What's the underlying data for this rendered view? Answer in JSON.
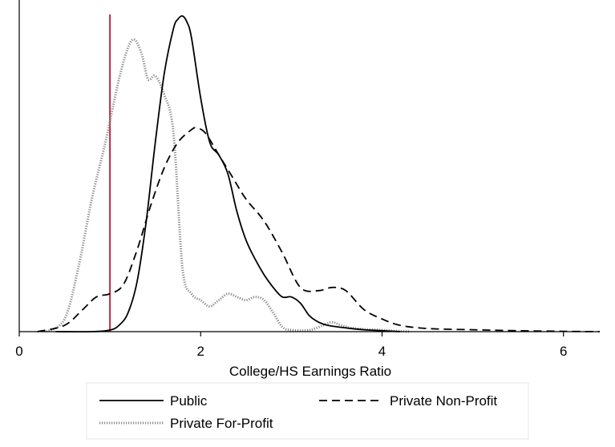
{
  "chart_data": {
    "type": "line",
    "title": "",
    "xlabel": "College/HS Earnings Ratio",
    "ylabel": "",
    "xlim": [
      0,
      6.4
    ],
    "ylim": [
      0,
      1.0
    ],
    "xticks": [
      0,
      2,
      4,
      6
    ],
    "xtick_labels": [
      "0",
      "2",
      "4",
      "6"
    ],
    "grid": false,
    "legend_position": "bottom",
    "reference_line": {
      "x": 1,
      "color": "#c0283e"
    },
    "series": [
      {
        "name": "Public",
        "style": "solid",
        "color": "#000000",
        "x": [
          0.4,
          0.8,
          1.0,
          1.1,
          1.2,
          1.3,
          1.4,
          1.5,
          1.6,
          1.7,
          1.75,
          1.8,
          1.85,
          1.9,
          2.0,
          2.1,
          2.2,
          2.3,
          2.4,
          2.5,
          2.6,
          2.7,
          2.8,
          2.9,
          3.0,
          3.1,
          3.2,
          3.3,
          3.4,
          3.6,
          3.8,
          4.0,
          4.2
        ],
        "y": [
          0.0,
          0.0,
          0.005,
          0.02,
          0.06,
          0.16,
          0.35,
          0.6,
          0.82,
          0.96,
          0.99,
          1.0,
          0.98,
          0.93,
          0.74,
          0.6,
          0.56,
          0.5,
          0.38,
          0.29,
          0.23,
          0.18,
          0.14,
          0.11,
          0.11,
          0.09,
          0.05,
          0.03,
          0.02,
          0.012,
          0.006,
          0.003,
          0.0
        ]
      },
      {
        "name": "Private Non-Profit",
        "style": "dashed",
        "color": "#000000",
        "x": [
          0.2,
          0.5,
          0.7,
          0.85,
          1.0,
          1.15,
          1.3,
          1.45,
          1.6,
          1.75,
          1.9,
          1.95,
          2.05,
          2.2,
          2.35,
          2.5,
          2.7,
          2.9,
          3.1,
          3.3,
          3.45,
          3.6,
          3.8,
          4.0,
          4.2,
          4.5,
          5.0,
          5.5,
          6.0,
          6.4
        ],
        "y": [
          0.0,
          0.02,
          0.07,
          0.11,
          0.12,
          0.15,
          0.26,
          0.4,
          0.52,
          0.6,
          0.64,
          0.645,
          0.63,
          0.56,
          0.49,
          0.42,
          0.35,
          0.25,
          0.14,
          0.13,
          0.14,
          0.13,
          0.07,
          0.04,
          0.02,
          0.01,
          0.006,
          0.003,
          0.001,
          0.0
        ]
      },
      {
        "name": "Private For-Profit",
        "style": "dotted",
        "color": "#888888",
        "x": [
          0.3,
          0.5,
          0.65,
          0.8,
          0.95,
          1.1,
          1.2,
          1.27,
          1.35,
          1.42,
          1.5,
          1.6,
          1.7,
          1.8,
          1.9,
          2.0,
          2.1,
          2.2,
          2.3,
          2.4,
          2.5,
          2.6,
          2.7,
          2.8,
          2.9,
          3.0,
          3.2,
          3.35,
          3.45,
          3.55,
          3.7,
          4.0,
          4.3
        ],
        "y": [
          0.0,
          0.04,
          0.2,
          0.42,
          0.6,
          0.8,
          0.9,
          0.925,
          0.88,
          0.8,
          0.81,
          0.75,
          0.63,
          0.2,
          0.12,
          0.1,
          0.08,
          0.1,
          0.12,
          0.11,
          0.1,
          0.11,
          0.1,
          0.06,
          0.015,
          0.005,
          0.005,
          0.02,
          0.03,
          0.02,
          0.01,
          0.005,
          0.0
        ]
      }
    ],
    "legend": [
      {
        "label": "Public",
        "style": "solid"
      },
      {
        "label": "Private Non-Profit",
        "style": "dashed"
      },
      {
        "label": "Private For-Profit",
        "style": "dotted"
      }
    ]
  }
}
